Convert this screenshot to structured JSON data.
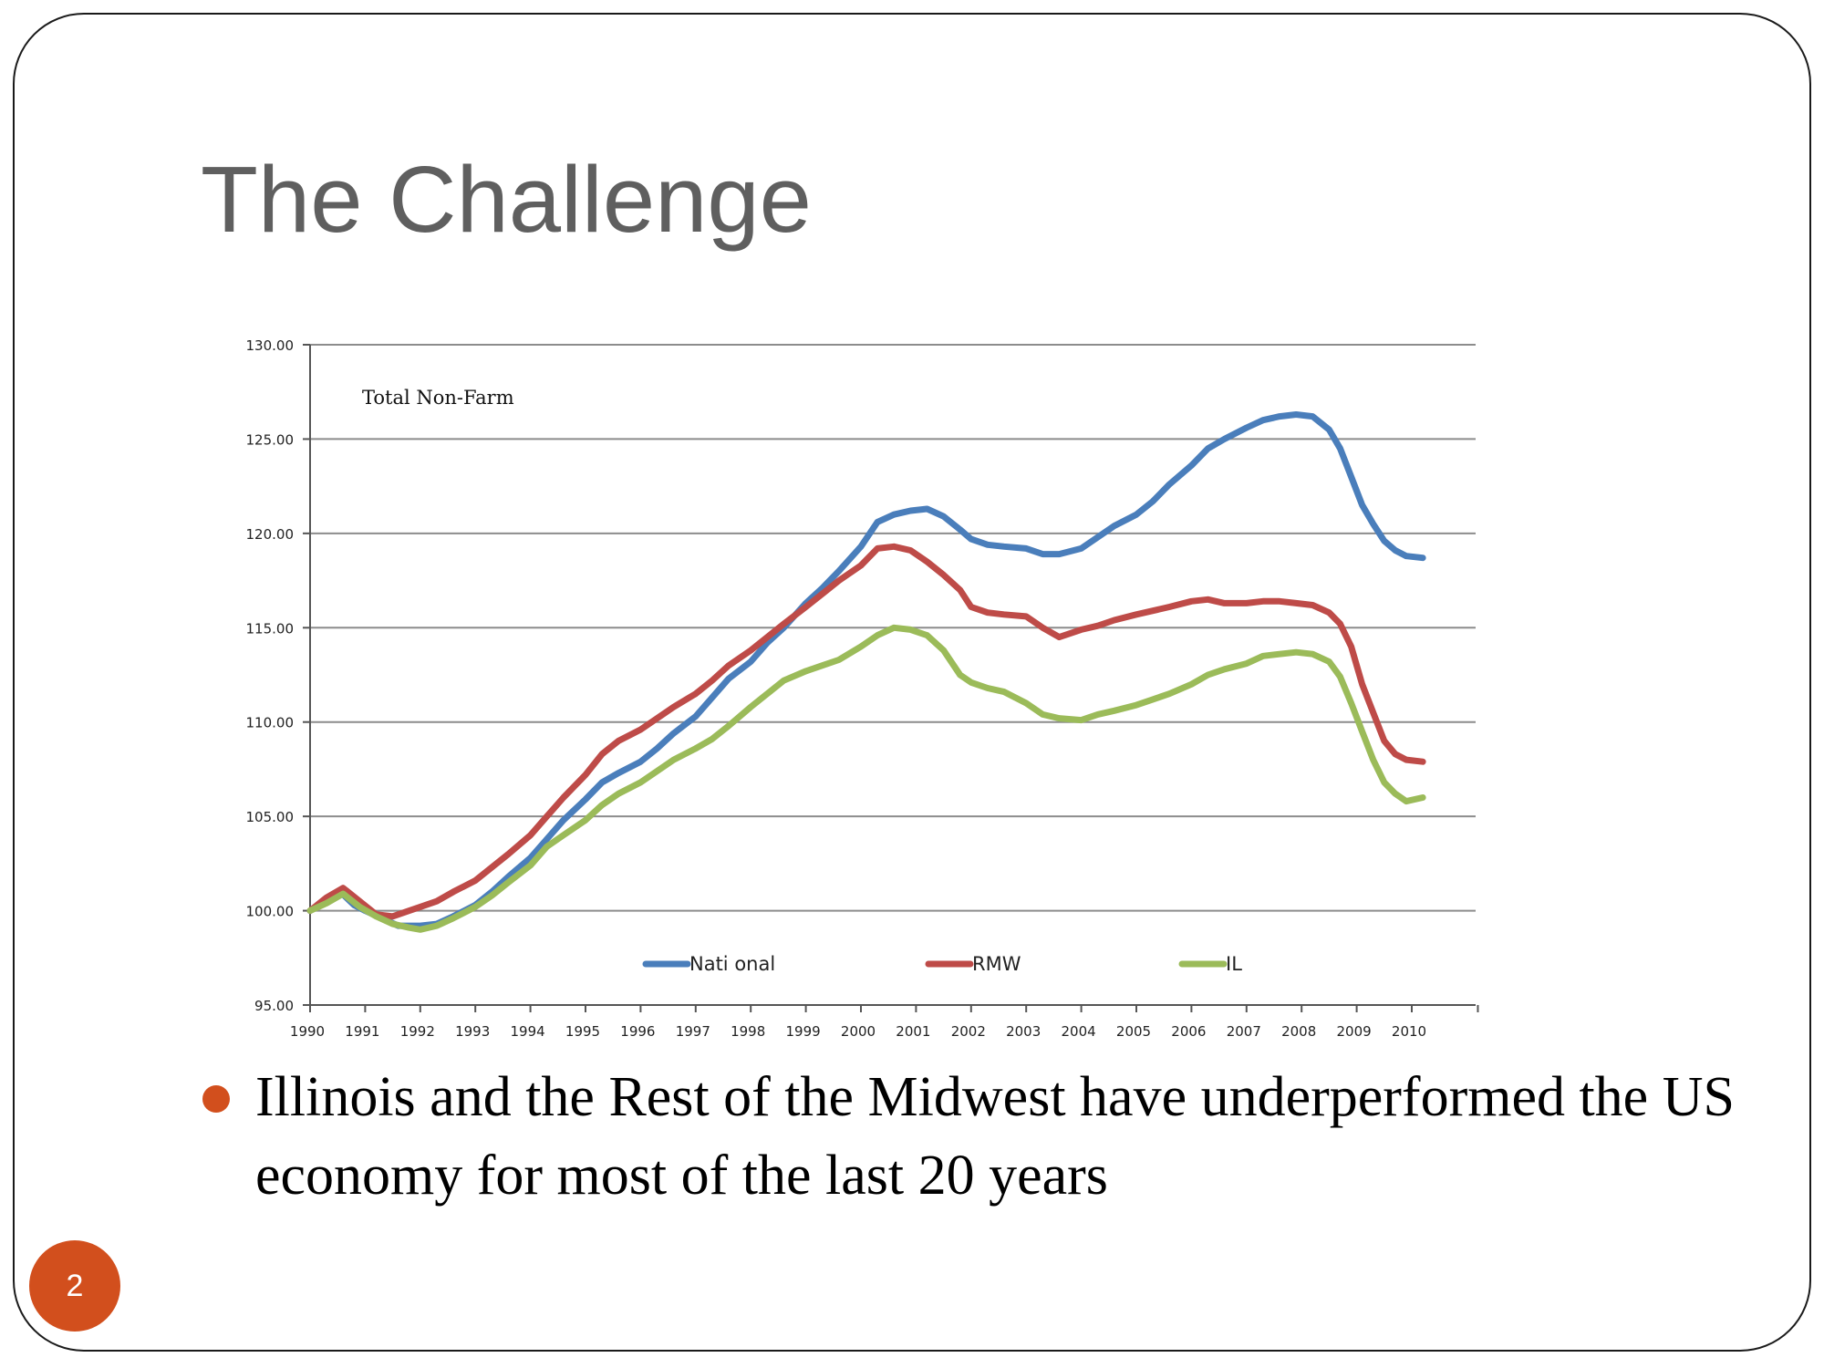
{
  "slide": {
    "title": "The Challenge",
    "bullet": "Illinois and the Rest of the Midwest have underperformed the US economy for most of the last 20 years",
    "page_number": "2",
    "accent_color": "#d24f1d"
  },
  "chart_data": {
    "type": "line",
    "title": "Total Non-Farm",
    "ylim": [
      95,
      130
    ],
    "yticks": [
      "95.00",
      "100.00",
      "105.00",
      "110.00",
      "115.00",
      "120.00",
      "125.00",
      "130.00"
    ],
    "xlim": [
      1990,
      2011.2
    ],
    "xticks": [
      "1990",
      "1991",
      "1992",
      "1993",
      "1994",
      "1995",
      "1996",
      "1997",
      "1998",
      "1999",
      "2000",
      "2001",
      "2002",
      "2003",
      "2004",
      "2005",
      "2006",
      "2007",
      "2008",
      "2009",
      "2010"
    ],
    "grid": true,
    "legend_position": "bottom",
    "series": [
      {
        "name": "Nati onal",
        "color": "#4a7ebb",
        "x": [
          1990,
          1990.3,
          1990.55,
          1990.8,
          1991.0,
          1991.3,
          1991.6,
          1992.0,
          1992.3,
          1992.6,
          1993.0,
          1993.3,
          1993.6,
          1994.0,
          1994.3,
          1994.6,
          1995.0,
          1995.3,
          1995.6,
          1996.0,
          1996.3,
          1996.6,
          1997.0,
          1997.3,
          1997.6,
          1998.0,
          1998.3,
          1998.6,
          1999.0,
          1999.3,
          1999.6,
          2000.0,
          2000.3,
          2000.6,
          2000.9,
          2001.2,
          2001.5,
          2001.8,
          2002.0,
          2002.3,
          2002.6,
          2003.0,
          2003.3,
          2003.6,
          2004.0,
          2004.3,
          2004.6,
          2005.0,
          2005.3,
          2005.6,
          2006.0,
          2006.3,
          2006.6,
          2007.0,
          2007.3,
          2007.6,
          2007.9,
          2008.2,
          2008.5,
          2008.7,
          2008.9,
          2009.1,
          2009.3,
          2009.5,
          2009.7,
          2009.9,
          2010.2
        ],
        "values": [
          100.0,
          100.5,
          101.0,
          100.3,
          100.0,
          99.6,
          99.2,
          99.2,
          99.3,
          99.7,
          100.3,
          101.0,
          101.8,
          102.8,
          103.8,
          104.8,
          105.9,
          106.8,
          107.3,
          107.9,
          108.6,
          109.4,
          110.3,
          111.3,
          112.3,
          113.2,
          114.2,
          115.0,
          116.3,
          117.1,
          118.0,
          119.3,
          120.6,
          121.0,
          121.2,
          121.3,
          120.9,
          120.2,
          119.7,
          119.4,
          119.3,
          119.2,
          118.9,
          118.9,
          119.2,
          119.8,
          120.4,
          121.0,
          121.7,
          122.6,
          123.6,
          124.5,
          125.0,
          125.6,
          126.0,
          126.2,
          126.3,
          126.2,
          125.5,
          124.5,
          123.0,
          121.5,
          120.5,
          119.6,
          119.1,
          118.8,
          118.7
        ]
      },
      {
        "name": "RMW",
        "color": "#be4b48",
        "x": [
          1990,
          1990.3,
          1990.6,
          1990.9,
          1991.2,
          1991.5,
          1991.8,
          1992.0,
          1992.3,
          1992.6,
          1993.0,
          1993.3,
          1993.6,
          1994.0,
          1994.3,
          1994.6,
          1995.0,
          1995.3,
          1995.6,
          1996.0,
          1996.3,
          1996.6,
          1997.0,
          1997.3,
          1997.6,
          1998.0,
          1998.3,
          1998.6,
          1999.0,
          1999.3,
          1999.6,
          2000.0,
          2000.3,
          2000.6,
          2000.9,
          2001.2,
          2001.5,
          2001.8,
          2002.0,
          2002.3,
          2002.6,
          2003.0,
          2003.3,
          2003.6,
          2004.0,
          2004.3,
          2004.6,
          2005.0,
          2005.3,
          2005.6,
          2006.0,
          2006.3,
          2006.6,
          2007.0,
          2007.3,
          2007.6,
          2007.9,
          2008.2,
          2008.5,
          2008.7,
          2008.9,
          2009.1,
          2009.3,
          2009.5,
          2009.7,
          2009.9,
          2010.2
        ],
        "values": [
          100.0,
          100.7,
          101.2,
          100.5,
          99.8,
          99.7,
          100.0,
          100.2,
          100.5,
          101.0,
          101.6,
          102.3,
          103.0,
          104.0,
          105.0,
          106.0,
          107.2,
          108.3,
          109.0,
          109.6,
          110.2,
          110.8,
          111.5,
          112.2,
          113.0,
          113.8,
          114.5,
          115.2,
          116.1,
          116.8,
          117.5,
          118.3,
          119.2,
          119.3,
          119.1,
          118.5,
          117.8,
          117.0,
          116.1,
          115.8,
          115.7,
          115.6,
          115.0,
          114.5,
          114.9,
          115.1,
          115.4,
          115.7,
          115.9,
          116.1,
          116.4,
          116.5,
          116.3,
          116.3,
          116.4,
          116.4,
          116.3,
          116.2,
          115.8,
          115.2,
          114.0,
          112.0,
          110.5,
          109.0,
          108.3,
          108.0,
          107.9
        ]
      },
      {
        "name": "IL",
        "color": "#9bbb59",
        "x": [
          1990,
          1990.3,
          1990.6,
          1990.9,
          1991.2,
          1991.5,
          1991.8,
          1992.0,
          1992.3,
          1992.6,
          1993.0,
          1993.3,
          1993.6,
          1994.0,
          1994.3,
          1994.6,
          1995.0,
          1995.3,
          1995.6,
          1996.0,
          1996.3,
          1996.6,
          1997.0,
          1997.3,
          1997.6,
          1998.0,
          1998.3,
          1998.6,
          1999.0,
          1999.3,
          1999.6,
          2000.0,
          2000.3,
          2000.6,
          2000.9,
          2001.2,
          2001.5,
          2001.8,
          2002.0,
          2002.3,
          2002.6,
          2003.0,
          2003.3,
          2003.6,
          2004.0,
          2004.3,
          2004.6,
          2005.0,
          2005.3,
          2005.6,
          2006.0,
          2006.3,
          2006.6,
          2007.0,
          2007.3,
          2007.6,
          2007.9,
          2008.2,
          2008.5,
          2008.7,
          2008.9,
          2009.1,
          2009.3,
          2009.5,
          2009.7,
          2009.9,
          2010.2
        ],
        "values": [
          100.0,
          100.4,
          100.9,
          100.2,
          99.7,
          99.3,
          99.1,
          99.0,
          99.2,
          99.6,
          100.2,
          100.8,
          101.5,
          102.4,
          103.4,
          104.0,
          104.8,
          105.6,
          106.2,
          106.8,
          107.4,
          108.0,
          108.6,
          109.1,
          109.8,
          110.8,
          111.5,
          112.2,
          112.7,
          113.0,
          113.3,
          114.0,
          114.6,
          115.0,
          114.9,
          114.6,
          113.8,
          112.5,
          112.1,
          111.8,
          111.6,
          111.0,
          110.4,
          110.2,
          110.1,
          110.4,
          110.6,
          110.9,
          111.2,
          111.5,
          112.0,
          112.5,
          112.8,
          113.1,
          113.5,
          113.6,
          113.7,
          113.6,
          113.2,
          112.4,
          111.0,
          109.5,
          108.0,
          106.8,
          106.2,
          105.8,
          106.0
        ]
      }
    ]
  }
}
